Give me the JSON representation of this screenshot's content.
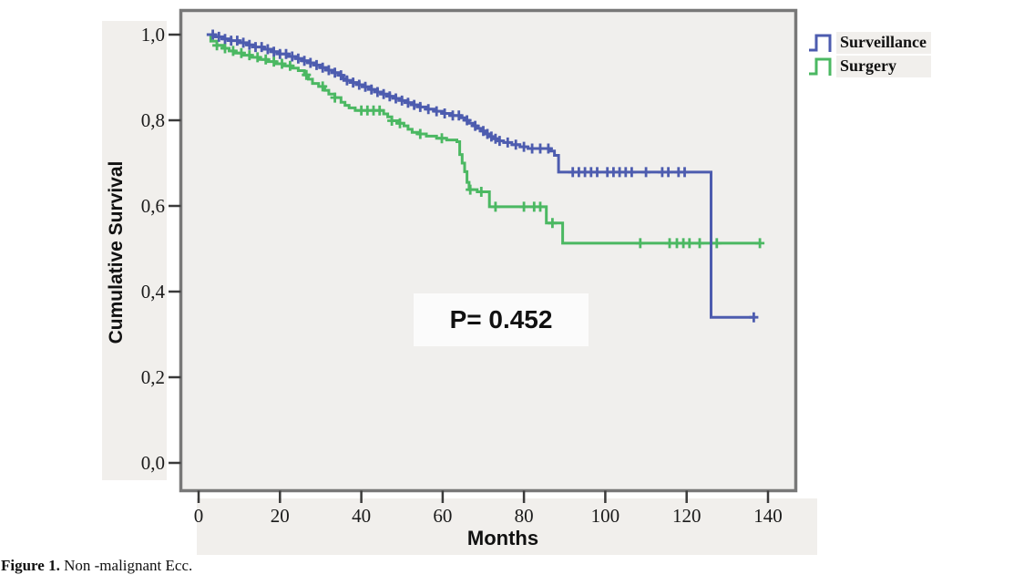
{
  "figure": {
    "caption_bold": "Figure 1.",
    "caption_rest": " Non -malignant Ecc."
  },
  "chart_data": {
    "type": "line",
    "subtype": "kaplan-meier-step",
    "title": "",
    "xlabel": "Months",
    "ylabel": "Cumulative Survival",
    "annotation": "P= 0.452",
    "xlim": [
      0,
      140
    ],
    "ylim": [
      0.0,
      1.0
    ],
    "grid": false,
    "legend_position": "outside-top-right",
    "x_ticks": [
      0,
      20,
      40,
      60,
      80,
      100,
      120,
      140
    ],
    "y_ticks": [
      {
        "value": 0.0,
        "label": "0,0"
      },
      {
        "value": 0.2,
        "label": "0,2"
      },
      {
        "value": 0.4,
        "label": "0,4"
      },
      {
        "value": 0.6,
        "label": "0,6"
      },
      {
        "value": 0.8,
        "label": "0,8"
      },
      {
        "value": 1.0,
        "label": "1,0"
      }
    ],
    "colors": {
      "plot_background": "#f0efed",
      "band_background": "#f1efec",
      "plot_border": "#787878",
      "tick": "#3a3a3a",
      "annotation_background": "#fbfbfb"
    },
    "series": [
      {
        "name": "Surveillance",
        "color": "#4d5caf",
        "steps": [
          [
            2,
            1.0
          ],
          [
            4,
            0.995
          ],
          [
            6,
            0.99
          ],
          [
            8,
            0.986
          ],
          [
            10,
            0.981
          ],
          [
            12,
            0.976
          ],
          [
            14,
            0.971
          ],
          [
            16,
            0.966
          ],
          [
            18,
            0.96
          ],
          [
            20,
            0.955
          ],
          [
            22,
            0.949
          ],
          [
            24,
            0.944
          ],
          [
            25.5,
            0.939
          ],
          [
            27,
            0.934
          ],
          [
            28.5,
            0.929
          ],
          [
            30,
            0.923
          ],
          [
            31.5,
            0.917
          ],
          [
            33,
            0.911
          ],
          [
            34.5,
            0.905
          ],
          [
            35.5,
            0.898
          ],
          [
            36.5,
            0.893
          ],
          [
            38,
            0.888
          ],
          [
            39.5,
            0.883
          ],
          [
            41,
            0.878
          ],
          [
            42.5,
            0.872
          ],
          [
            44,
            0.866
          ],
          [
            45.5,
            0.861
          ],
          [
            47,
            0.856
          ],
          [
            48.5,
            0.851
          ],
          [
            50,
            0.846
          ],
          [
            51.5,
            0.841
          ],
          [
            53,
            0.836
          ],
          [
            54.5,
            0.831
          ],
          [
            56,
            0.826
          ],
          [
            58,
            0.821
          ],
          [
            60,
            0.816
          ],
          [
            62,
            0.811
          ],
          [
            64.5,
            0.806
          ],
          [
            65.5,
            0.8
          ],
          [
            66.5,
            0.793
          ],
          [
            67.5,
            0.787
          ],
          [
            68.5,
            0.781
          ],
          [
            69.5,
            0.775
          ],
          [
            70.5,
            0.768
          ],
          [
            71.5,
            0.762
          ],
          [
            72.5,
            0.757
          ],
          [
            73.5,
            0.752
          ],
          [
            75,
            0.748
          ],
          [
            77,
            0.743
          ],
          [
            79,
            0.738
          ],
          [
            81,
            0.734
          ],
          [
            86.5,
            0.728
          ],
          [
            87.5,
            0.718
          ],
          [
            88.5,
            0.679
          ],
          [
            126,
            0.679
          ],
          [
            126,
            0.34
          ],
          [
            136.5,
            0.34
          ]
        ],
        "censor_months": [
          3.5,
          5,
          6.5,
          8,
          9.5,
          11,
          12.5,
          14,
          15.5,
          17,
          18.5,
          20,
          21.5,
          23,
          24.5,
          26,
          27.5,
          29,
          30.5,
          32,
          33.5,
          35,
          36.5,
          38,
          39.5,
          41,
          42.5,
          44,
          45.5,
          47,
          48.5,
          50,
          51.5,
          53,
          54.5,
          56.5,
          58.5,
          60.5,
          62.5,
          64,
          66,
          68,
          70,
          71,
          72,
          73,
          74,
          76,
          78,
          80,
          82,
          84,
          86,
          92,
          93.5,
          95,
          96.5,
          98,
          100.5,
          102,
          103.5,
          105,
          106.5,
          110,
          114,
          115.5,
          118,
          119.5,
          136.5
        ]
      },
      {
        "name": "Surgery",
        "color": "#4bb862",
        "steps": [
          [
            2,
            1.0
          ],
          [
            3,
            0.985
          ],
          [
            4.5,
            0.975
          ],
          [
            6,
            0.968
          ],
          [
            7.5,
            0.962
          ],
          [
            9,
            0.957
          ],
          [
            11,
            0.952
          ],
          [
            13,
            0.947
          ],
          [
            15,
            0.942
          ],
          [
            17,
            0.937
          ],
          [
            19,
            0.932
          ],
          [
            21,
            0.927
          ],
          [
            23,
            0.922
          ],
          [
            24.5,
            0.916
          ],
          [
            26,
            0.906
          ],
          [
            27,
            0.896
          ],
          [
            28,
            0.886
          ],
          [
            29.5,
            0.879
          ],
          [
            31,
            0.87
          ],
          [
            32,
            0.861
          ],
          [
            33.5,
            0.853
          ],
          [
            35,
            0.842
          ],
          [
            36,
            0.835
          ],
          [
            37,
            0.829
          ],
          [
            38.5,
            0.823
          ],
          [
            45.5,
            0.815
          ],
          [
            46.5,
            0.808
          ],
          [
            47.5,
            0.799
          ],
          [
            49,
            0.793
          ],
          [
            50.5,
            0.787
          ],
          [
            51.5,
            0.779
          ],
          [
            52.5,
            0.772
          ],
          [
            54,
            0.768
          ],
          [
            56,
            0.763
          ],
          [
            58.5,
            0.758
          ],
          [
            61,
            0.754
          ],
          [
            63.5,
            0.75
          ],
          [
            64.2,
            0.72
          ],
          [
            64.8,
            0.7
          ],
          [
            65.4,
            0.68
          ],
          [
            66,
            0.655
          ],
          [
            66.5,
            0.638
          ],
          [
            68.5,
            0.633
          ],
          [
            71.5,
            0.598
          ],
          [
            85.5,
            0.56
          ],
          [
            89.5,
            0.513
          ],
          [
            138,
            0.513
          ]
        ],
        "censor_months": [
          4.5,
          6.5,
          8.5,
          10.5,
          12.5,
          14.5,
          16.5,
          18.5,
          20.5,
          22.5,
          26.5,
          30.5,
          33.5,
          40,
          41.5,
          43,
          44.5,
          47.5,
          49.5,
          54.5,
          59.8,
          66.8,
          69.5,
          73,
          80,
          82.5,
          84,
          87,
          108.6,
          115.8,
          117.6,
          119.2,
          120.7,
          123.2,
          127.4,
          138
        ]
      }
    ]
  }
}
